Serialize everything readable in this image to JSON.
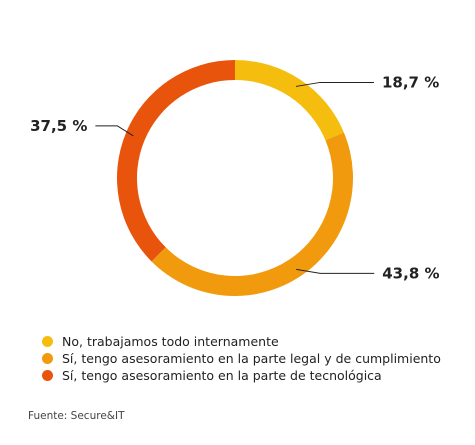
{
  "chart_data": {
    "type": "pie",
    "donut": true,
    "title": "",
    "slices": [
      {
        "label": "No, trabajamos todo internamente",
        "value": 18.7,
        "display": "18,7 %",
        "color": "#f5bd0e"
      },
      {
        "label": "Sí, tengo asesoramiento en la parte legal y de cumplimiento",
        "value": 43.8,
        "display": "43,8 %",
        "color": "#f19a0e"
      },
      {
        "label": "Sí, tengo asesoramiento en la parte de tecnológica",
        "value": 37.5,
        "display": "37,5 %",
        "color": "#e9540d"
      }
    ],
    "legend_position": "bottom-left"
  },
  "source": "Fuente: Secure&IT"
}
